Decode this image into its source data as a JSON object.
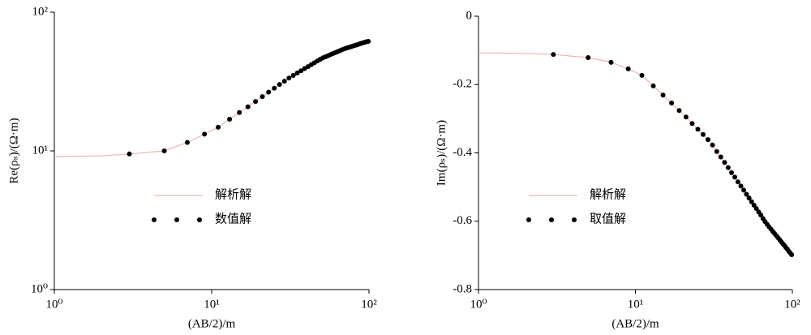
{
  "chart_data": [
    {
      "type": "line",
      "xlabel": "(AB/2)/m",
      "ylabel": "Re(ρₛ)/(Ω·m)",
      "xscale": "log",
      "yscale": "log",
      "xlim": [
        1,
        100
      ],
      "ylim": [
        1,
        100
      ],
      "xticks": [
        {
          "value": 1,
          "label": "10⁰"
        },
        {
          "value": 10,
          "label": "10¹"
        },
        {
          "value": 100,
          "label": "10²"
        }
      ],
      "yticks": [
        {
          "value": 1,
          "label": "10⁰"
        },
        {
          "value": 10,
          "label": "10¹"
        },
        {
          "value": 100,
          "label": "10²"
        }
      ],
      "series": [
        {
          "name": "解析解",
          "mode": "line",
          "color": "#f2b3b3",
          "x": [
            1,
            2,
            3,
            5,
            7,
            9,
            11,
            15,
            20,
            30,
            50,
            70,
            100
          ],
          "values": [
            9.1,
            9.2,
            9.5,
            10.0,
            11.5,
            13.2,
            14.8,
            18.9,
            23.7,
            32.7,
            46,
            54.6,
            62
          ]
        },
        {
          "name": "数值解",
          "mode": "markers",
          "color": "#000000",
          "x": [
            3,
            5,
            7,
            9,
            11,
            13,
            15,
            17,
            19,
            21,
            23,
            25,
            27,
            29,
            31,
            33,
            35,
            37,
            39,
            41,
            43,
            45,
            47,
            49,
            51,
            53,
            55,
            57,
            59,
            61,
            63,
            65,
            67,
            69,
            71,
            73,
            75,
            77,
            79,
            81,
            83,
            85,
            87,
            89,
            91,
            93,
            95,
            97,
            99
          ],
          "values": [
            9.5,
            10.0,
            11.5,
            13.2,
            14.8,
            16.9,
            18.9,
            20.8,
            22.7,
            24.6,
            26.5,
            28.3,
            30.1,
            31.8,
            33.5,
            35.0,
            36.4,
            37.8,
            39.2,
            40.5,
            41.9,
            43.2,
            44.5,
            45.8,
            46.9,
            47.7,
            48.6,
            49.5,
            50.3,
            51.1,
            51.9,
            52.7,
            53.5,
            54.2,
            54.8,
            55.4,
            55.9,
            56.4,
            57.0,
            57.5,
            58.0,
            58.5,
            59.0,
            59.5,
            60.0,
            60.5,
            61.0,
            61.3,
            61.6
          ]
        }
      ]
    },
    {
      "type": "line",
      "xlabel": "(AB/2)/m",
      "ylabel": "Im(ρₛ)/(Ω·m)",
      "xscale": "log",
      "yscale": "linear",
      "xlim": [
        1,
        100
      ],
      "ylim": [
        -0.8,
        0
      ],
      "xticks": [
        {
          "value": 1,
          "label": "10⁰"
        },
        {
          "value": 10,
          "label": "10¹"
        },
        {
          "value": 100,
          "label": "10²"
        }
      ],
      "yticks": [
        0,
        -0.2,
        -0.4,
        -0.6,
        -0.8
      ],
      "series": [
        {
          "name": "解析解",
          "mode": "line",
          "color": "#f2b3b3",
          "x": [
            1,
            2,
            3,
            5,
            7,
            9,
            11,
            15,
            20,
            30,
            50,
            70,
            100
          ],
          "values": [
            -0.107,
            -0.109,
            -0.112,
            -0.121,
            -0.135,
            -0.154,
            -0.173,
            -0.231,
            -0.285,
            -0.368,
            -0.515,
            -0.613,
            -0.7
          ]
        },
        {
          "name": "取值解",
          "mode": "markers",
          "color": "#000000",
          "x": [
            3,
            5,
            7,
            9,
            11,
            13,
            15,
            17,
            19,
            21,
            23,
            25,
            27,
            29,
            31,
            33,
            35,
            37,
            39,
            41,
            43,
            45,
            47,
            49,
            51,
            53,
            55,
            57,
            59,
            61,
            63,
            65,
            67,
            69,
            71,
            73,
            75,
            77,
            79,
            81,
            83,
            85,
            87,
            89,
            91,
            93,
            95,
            97,
            99
          ],
          "values": [
            -0.112,
            -0.121,
            -0.135,
            -0.154,
            -0.173,
            -0.204,
            -0.231,
            -0.254,
            -0.276,
            -0.295,
            -0.314,
            -0.331,
            -0.346,
            -0.361,
            -0.377,
            -0.396,
            -0.412,
            -0.428,
            -0.443,
            -0.458,
            -0.471,
            -0.485,
            -0.497,
            -0.509,
            -0.521,
            -0.532,
            -0.543,
            -0.553,
            -0.563,
            -0.573,
            -0.582,
            -0.592,
            -0.601,
            -0.609,
            -0.616,
            -0.623,
            -0.63,
            -0.636,
            -0.642,
            -0.648,
            -0.654,
            -0.66,
            -0.666,
            -0.671,
            -0.677,
            -0.682,
            -0.688,
            -0.693,
            -0.698
          ]
        }
      ]
    }
  ]
}
